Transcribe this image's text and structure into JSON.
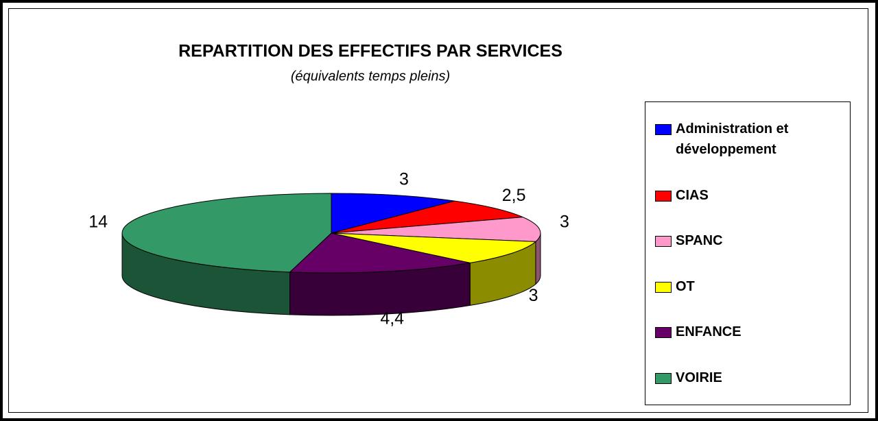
{
  "chart_data": {
    "type": "pie",
    "title": "REPARTITION DES EFFECTIFS PAR SERVICES",
    "subtitle": "(équivalents temps pleins)",
    "categories": [
      "Administration et développement",
      "CIAS",
      "SPANC",
      "OT",
      "ENFANCE",
      "VOIRIE"
    ],
    "values": [
      3,
      2.5,
      3,
      3,
      4.4,
      14
    ],
    "value_labels": [
      "3",
      "2,5",
      "3",
      "3",
      "4,4",
      "14"
    ],
    "colors": [
      "#0000ff",
      "#ff0000",
      "#ff99cc",
      "#ffff00",
      "#660066",
      "#339966"
    ],
    "legend": "right"
  }
}
